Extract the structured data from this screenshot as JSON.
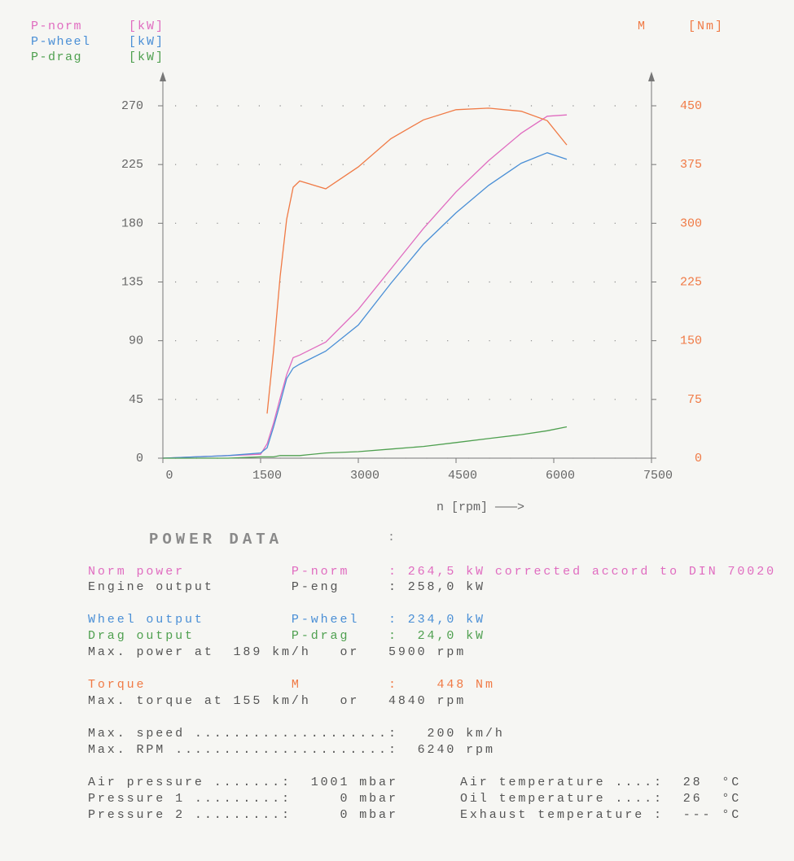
{
  "chart_data": {
    "type": "line",
    "x": [
      0,
      500,
      1000,
      1500,
      1600,
      1700,
      1800,
      1900,
      2000,
      2100,
      2500,
      3000,
      3500,
      4000,
      4500,
      5000,
      5500,
      5900,
      6200
    ],
    "xlim": [
      0,
      7500
    ],
    "xticks": [
      0,
      1500,
      3000,
      4500,
      6000,
      7500
    ],
    "ylim": [
      0,
      270
    ],
    "yticks": [
      0,
      45,
      90,
      135,
      180,
      225,
      270
    ],
    "y2lim": [
      0,
      450
    ],
    "y2ticks": [
      0,
      75,
      150,
      225,
      300,
      375,
      450
    ],
    "xlabel": "n [rpm] ———>",
    "grid": true,
    "series": [
      {
        "name": "P-norm",
        "unit": "[kW]",
        "color": "#e06cc0",
        "values": [
          0,
          1,
          2,
          3,
          11,
          27,
          46,
          64,
          77,
          79,
          89,
          114,
          145,
          176,
          204,
          228,
          249,
          262,
          263
        ]
      },
      {
        "name": "P-wheel",
        "unit": "[kW]",
        "color": "#4a8fd6",
        "values": [
          0,
          1,
          2,
          4,
          8,
          24,
          42,
          61,
          69,
          72,
          82,
          102,
          134,
          164,
          188,
          209,
          226,
          234,
          229
        ]
      },
      {
        "name": "P-drag",
        "unit": "[kW]",
        "color": "#4fa050",
        "values": [
          0,
          0,
          0,
          1,
          1,
          1,
          2,
          2,
          2,
          2,
          4,
          5,
          7,
          9,
          12,
          15,
          18,
          21,
          24
        ]
      },
      {
        "name": "M",
        "unit": "[Nm]",
        "color": "#f07a45",
        "axis": "y2",
        "values": [
          null,
          null,
          null,
          null,
          57,
          138,
          232,
          305,
          346,
          354,
          344,
          372,
          408,
          432,
          445,
          447,
          443,
          431,
          400
        ]
      }
    ]
  },
  "power_data": {
    "title": "POWER DATA",
    "separator": ":",
    "rows": [
      {
        "color": "#e06cc0",
        "cells": [
          "Norm power           P-norm    : 264,5 kW corrected accord to DIN 70020"
        ]
      },
      {
        "color": "#555555",
        "cells": [
          "Engine output        P-eng     : 258,0 kW"
        ]
      },
      {
        "color": "#4a8fd6",
        "cells": [
          "Wheel output         P-wheel   : 234,0 kW"
        ]
      },
      {
        "color": "#4fa050",
        "cells": [
          "Drag output          P-drag    :  24,0 kW"
        ]
      },
      {
        "color": "#555555",
        "cells": [
          "Max. power at  189 km/h   or   5900 rpm"
        ]
      },
      {
        "color": "#f07a45",
        "cells": [
          "Torque               M         :    448 Nm"
        ]
      },
      {
        "color": "#555555",
        "cells": [
          "Max. torque at 155 km/h   or   4840 rpm"
        ]
      },
      {
        "color": "#555555",
        "cells": [
          "Max. speed ....................:   200 km/h"
        ]
      },
      {
        "color": "#555555",
        "cells": [
          "Max. RPM ......................:  6240 rpm"
        ]
      },
      {
        "color": "#555555",
        "cells": [
          "Air pressure .......:  1001 mbar",
          "Air temperature ....:  28  °C"
        ]
      },
      {
        "color": "#555555",
        "cells": [
          "Pressure 1 .........:     0 mbar",
          "Oil temperature ....:  26  °C"
        ]
      },
      {
        "color": "#555555",
        "cells": [
          "Pressure 2 .........:     0 mbar",
          "Exhaust temperature :  --- °C"
        ]
      }
    ]
  }
}
